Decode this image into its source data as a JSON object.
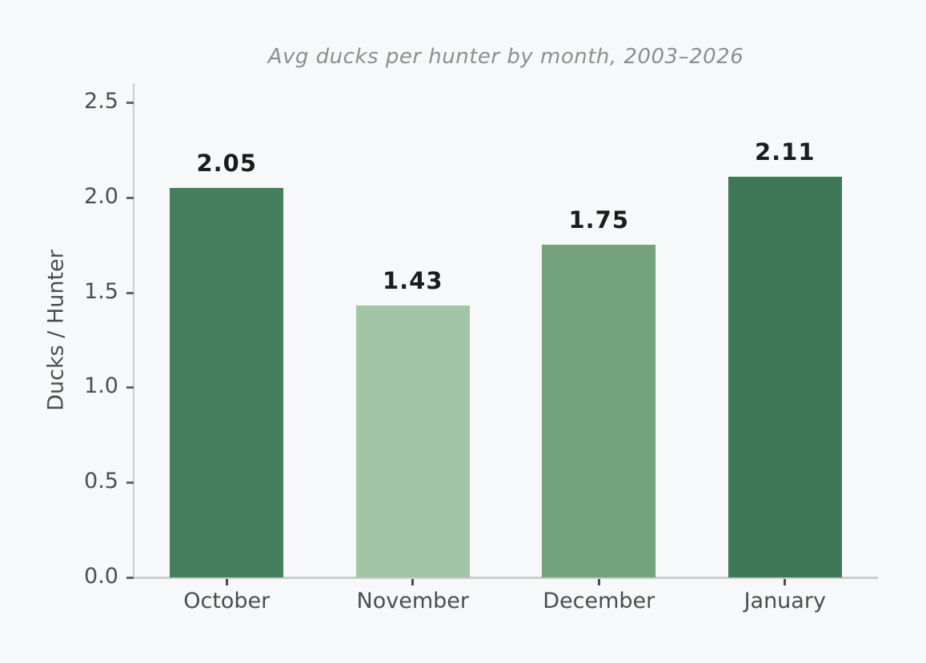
{
  "chart_data": {
    "type": "bar",
    "title": "Avg ducks per hunter by month, 2003–2026",
    "xlabel": "",
    "ylabel": "Ducks / Hunter",
    "categories": [
      "October",
      "November",
      "December",
      "January"
    ],
    "values": [
      2.05,
      1.43,
      1.75,
      2.11
    ],
    "value_labels": [
      "2.05",
      "1.43",
      "1.75",
      "2.11"
    ],
    "bar_colors": [
      "#45805C",
      "#A2C5A5",
      "#74A27D",
      "#3D7956"
    ],
    "ylim": [
      0,
      2.5
    ],
    "ytick_labels": [
      "0.0",
      "0.5",
      "1.0",
      "1.5",
      "2.0",
      "2.5"
    ],
    "grid": false,
    "legend": null,
    "colors": {
      "background": "#f7f8fa",
      "spine": "#cdcdcd",
      "title_text": "#8e8e8e",
      "tick_text": "#4d4d4d",
      "value_label_text": "#1c1c1c"
    }
  }
}
